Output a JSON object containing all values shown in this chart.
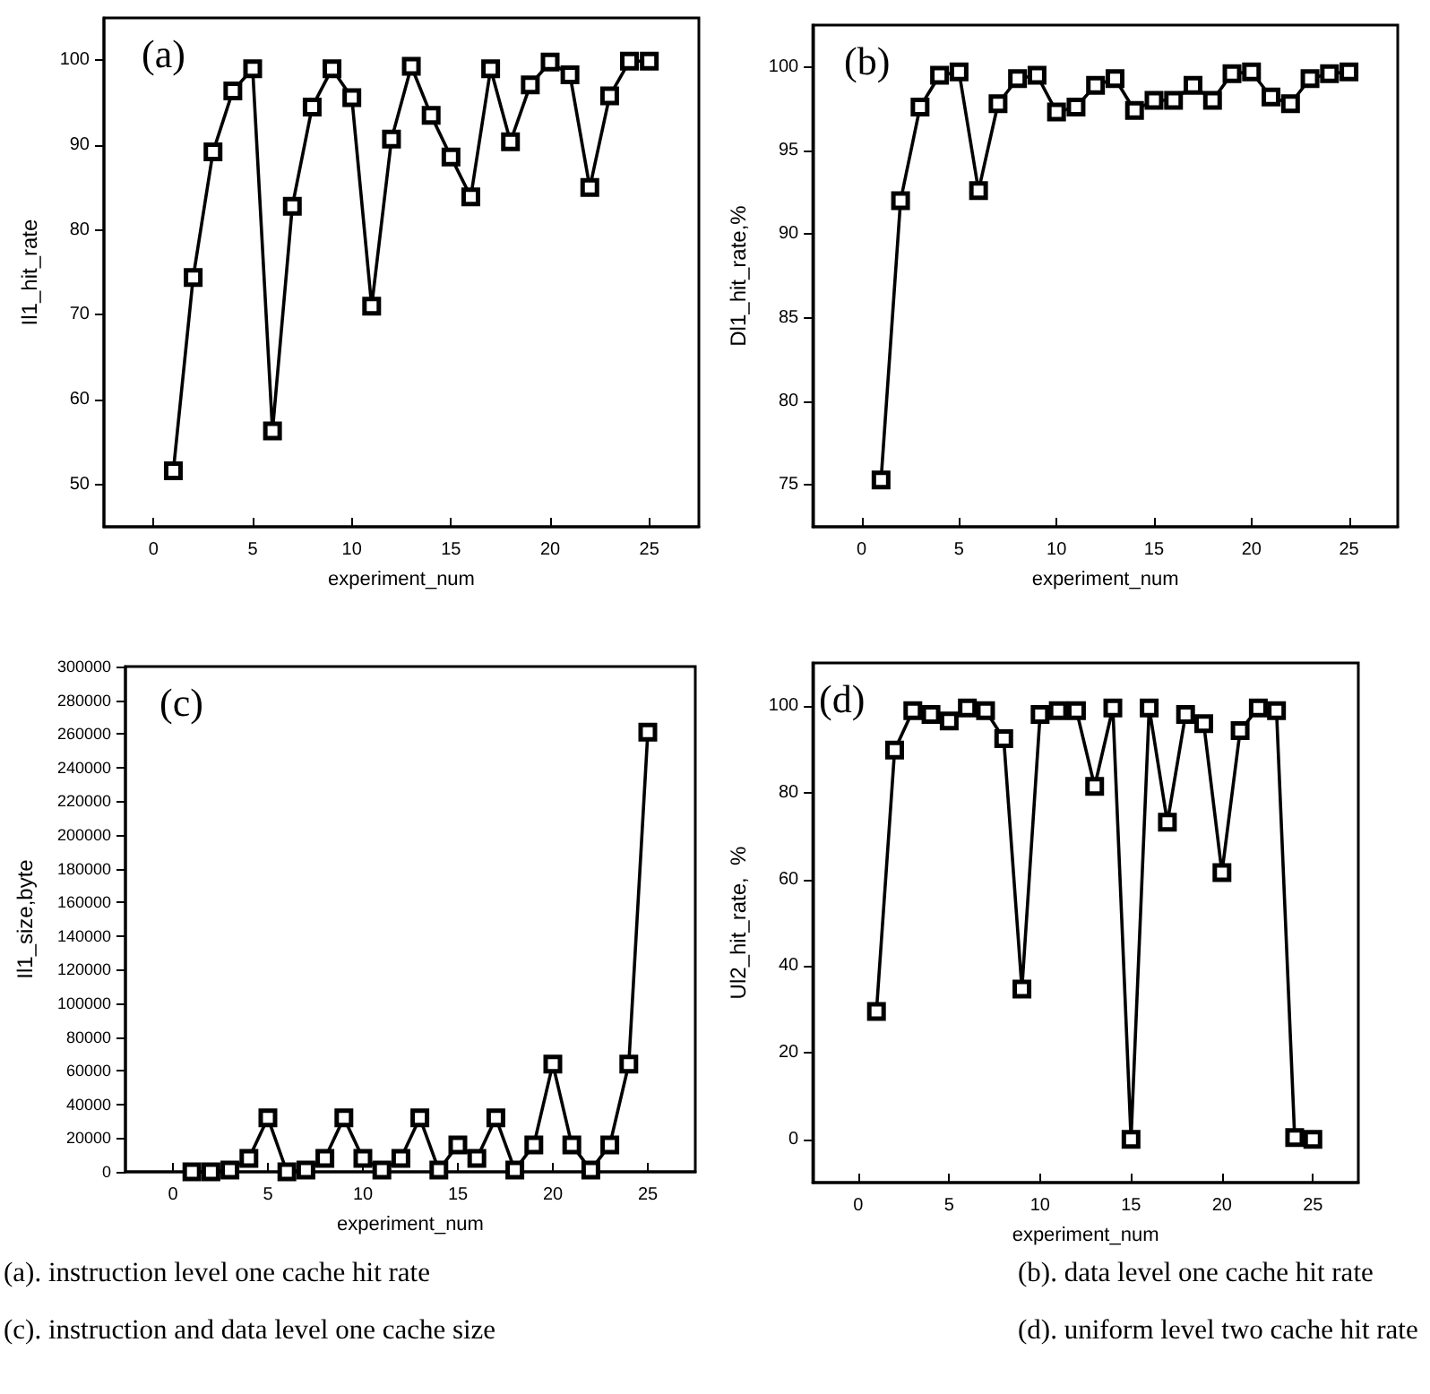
{
  "chart_data": [
    {
      "type": "line",
      "title": "(a)",
      "xlabel": "experiment_num",
      "ylabel": "Il1_hit_rate",
      "marker": "square",
      "color": "#000000",
      "x": [
        1,
        2,
        3,
        4,
        5,
        6,
        7,
        8,
        9,
        10,
        11,
        12,
        13,
        14,
        15,
        16,
        17,
        18,
        19,
        20,
        21,
        22,
        23,
        24,
        25
      ],
      "values": [
        51.6,
        74.4,
        89.2,
        96.4,
        99.0,
        56.3,
        82.8,
        94.5,
        99.0,
        95.6,
        71.0,
        90.7,
        99.3,
        93.5,
        88.6,
        83.9,
        99.0,
        90.4,
        97.1,
        99.8,
        98.3,
        85.0,
        95.8,
        99.9,
        99.9
      ],
      "xlim": [
        -2.5,
        27.5
      ],
      "xticks": [
        0,
        5,
        10,
        15,
        20,
        25
      ],
      "ylim": [
        45,
        105
      ],
      "yticks": [
        50,
        60,
        70,
        80,
        90,
        100
      ],
      "annotations": [
        "(a). instruction level one cache hit rate"
      ]
    },
    {
      "type": "line",
      "title": "(b)",
      "xlabel": "experiment_num",
      "ylabel": "Dl1_hit_rate,%",
      "marker": "square",
      "color": "#000000",
      "x": [
        1,
        2,
        3,
        4,
        5,
        6,
        7,
        8,
        9,
        10,
        11,
        12,
        13,
        14,
        15,
        16,
        17,
        18,
        19,
        20,
        21,
        22,
        23,
        24,
        25
      ],
      "values": [
        75.3,
        92.0,
        97.6,
        99.5,
        99.7,
        92.6,
        97.8,
        99.3,
        99.5,
        97.3,
        97.6,
        98.9,
        99.3,
        97.4,
        98.0,
        98.0,
        98.9,
        98.0,
        99.6,
        99.7,
        98.2,
        97.8,
        99.3,
        99.6,
        99.7
      ],
      "xlim": [
        -2.5,
        27.5
      ],
      "xticks": [
        0,
        5,
        10,
        15,
        20,
        25
      ],
      "ylim": [
        72.5,
        102.5
      ],
      "yticks": [
        75,
        80,
        85,
        90,
        95,
        100
      ],
      "annotations": [
        "(b). data level one cache hit rate"
      ]
    },
    {
      "type": "line",
      "title": "(c)",
      "xlabel": "experiment_num",
      "ylabel": "Il1_size,byte",
      "marker": "square",
      "color": "#000000",
      "x": [
        1,
        2,
        3,
        4,
        5,
        6,
        7,
        8,
        9,
        10,
        11,
        12,
        13,
        14,
        15,
        16,
        17,
        18,
        19,
        20,
        21,
        22,
        23,
        24,
        25
      ],
      "values": [
        0,
        0,
        1000,
        8000,
        32000,
        0,
        1000,
        8000,
        32000,
        8000,
        1000,
        8000,
        32000,
        1000,
        16000,
        8000,
        32000,
        1000,
        16000,
        64000,
        16000,
        1000,
        16000,
        64000,
        261000
      ],
      "xlim": [
        -2.5,
        27.5
      ],
      "xticks": [
        0,
        5,
        10,
        15,
        20,
        25
      ],
      "ylim": [
        0,
        300000
      ],
      "yticks": [
        0,
        20000,
        40000,
        60000,
        80000,
        100000,
        120000,
        140000,
        160000,
        180000,
        200000,
        220000,
        240000,
        260000,
        280000,
        300000
      ],
      "annotations": [
        "(c). instruction and data level one cache size"
      ]
    },
    {
      "type": "line",
      "title": "(d)",
      "xlabel": "experiment_num",
      "ylabel": "Ul2_hit_rate,  %",
      "marker": "square",
      "color": "#000000",
      "x": [
        1,
        2,
        3,
        4,
        5,
        6,
        7,
        8,
        9,
        10,
        11,
        12,
        13,
        14,
        15,
        16,
        17,
        18,
        19,
        20,
        21,
        22,
        23,
        24,
        25
      ],
      "values": [
        29.5,
        89.9,
        99.0,
        98.1,
        96.6,
        99.6,
        99.0,
        92.5,
        34.7,
        98.1,
        99.0,
        99.0,
        81.5,
        99.6,
        0,
        99.6,
        73.2,
        98.1,
        96.0,
        61.6,
        94.4,
        99.6,
        99.0,
        0.4,
        0
      ],
      "xlim": [
        -2.5,
        27.5
      ],
      "xticks": [
        0,
        5,
        10,
        15,
        20,
        25
      ],
      "ylim": [
        -10,
        110
      ],
      "yticks": [
        0,
        20,
        40,
        60,
        80,
        100
      ],
      "annotations": [
        "(d). uniform level two cache hit rate"
      ]
    }
  ]
}
